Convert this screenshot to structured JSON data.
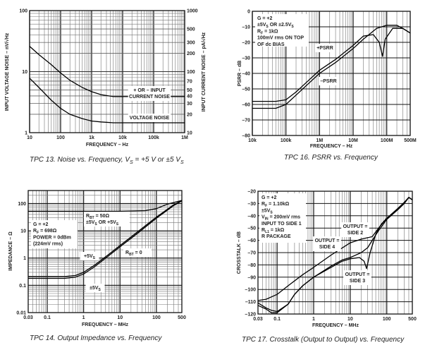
{
  "chart_data": [
    {
      "id": "tpc13",
      "type": "line",
      "caption": {
        "prefix": "TPC 13.  Noise vs. Frequency, V",
        "sub1": "S",
        "mid": " = +5 V or ±5 V",
        "sub2": "S"
      },
      "xlabel": "FREQUENCY – Hz",
      "ylabel": "INPUT VOLTAGE NOISE – nV/√Hz",
      "y2label": "INPUT CURRENT NOISE – pA/√Hz",
      "xscale": "log",
      "yscale": "log",
      "xlim": [
        10,
        1000000
      ],
      "ylim": [
        1,
        100
      ],
      "y2lim": [
        10,
        1000
      ],
      "xticks": [
        {
          "v": 10,
          "label": "10"
        },
        {
          "v": 100,
          "label": "100"
        },
        {
          "v": 1000,
          "label": "1k"
        },
        {
          "v": 10000,
          "label": "10k"
        },
        {
          "v": 100000,
          "label": "100k"
        },
        {
          "v": 1000000,
          "label": "1M"
        }
      ],
      "yticks": [
        {
          "v": 1,
          "label": "1"
        },
        {
          "v": 10,
          "label": "10"
        },
        {
          "v": 100,
          "label": "100"
        }
      ],
      "y2ticks": [
        {
          "v": 10,
          "label": "10"
        },
        {
          "v": 20,
          "label": "20"
        },
        {
          "v": 30,
          "label": "30"
        },
        {
          "v": 40,
          "label": "40"
        },
        {
          "v": 50,
          "label": "50"
        },
        {
          "v": 70,
          "label": "70"
        },
        {
          "v": 100,
          "label": "100"
        },
        {
          "v": 200,
          "label": "200"
        },
        {
          "v": 300,
          "label": "300"
        },
        {
          "v": 500,
          "label": "500"
        },
        {
          "v": 1000,
          "label": "1000"
        }
      ],
      "grid": true,
      "series": [
        {
          "name": "+ OR – INPUT CURRENT NOISE",
          "axis": "y2",
          "x": [
            10,
            20,
            50,
            100,
            200,
            500,
            1000,
            2000,
            5000,
            10000,
            100000,
            1000000
          ],
          "y": [
            260,
            190,
            130,
            95,
            72,
            55,
            47,
            42,
            39,
            39,
            39,
            39
          ]
        },
        {
          "name": "VOLTAGE NOISE",
          "axis": "y",
          "x": [
            10,
            20,
            50,
            100,
            200,
            500,
            1000,
            2000,
            5000,
            10000,
            100000,
            1000000
          ],
          "y": [
            7.8,
            5.5,
            3.4,
            2.5,
            2.0,
            1.7,
            1.55,
            1.5,
            1.45,
            1.45,
            1.45,
            1.45
          ]
        }
      ],
      "annotations": [
        {
          "lines": [
            "+ OR – INPUT",
            "CURRENT NOISE"
          ],
          "at": [
            20000,
            4.8
          ]
        },
        {
          "lines": [
            "VOLTAGE NOISE"
          ],
          "at": [
            20000,
            1.9
          ]
        }
      ]
    },
    {
      "id": "tpc16",
      "type": "line",
      "caption": {
        "text": "TPC 16.  PSRR vs. Frequency"
      },
      "xlabel": "FREQUENCY – Hz",
      "ylabel": "PSRR – dB",
      "xscale": "log",
      "yscale": "linear",
      "xlim": [
        10000,
        500000000
      ],
      "ylim": [
        -80,
        0
      ],
      "xticks": [
        {
          "v": 10000,
          "label": "10k"
        },
        {
          "v": 100000,
          "label": "100k"
        },
        {
          "v": 1000000,
          "label": "1M"
        },
        {
          "v": 10000000,
          "label": "10M"
        },
        {
          "v": 100000000,
          "label": "100M"
        },
        {
          "v": 500000000,
          "label": "500M"
        }
      ],
      "yticks": [
        {
          "v": 0,
          "label": "0"
        },
        {
          "v": -10,
          "label": "–10"
        },
        {
          "v": -20,
          "label": "–20"
        },
        {
          "v": -30,
          "label": "–30"
        },
        {
          "v": -40,
          "label": "–40"
        },
        {
          "v": -50,
          "label": "–50"
        },
        {
          "v": -60,
          "label": "–60"
        },
        {
          "v": -70,
          "label": "–70"
        },
        {
          "v": -80,
          "label": "–80"
        }
      ],
      "grid": true,
      "legend_box": [
        "G = +2",
        "±5V_S OR ±2.5V_S",
        "R_F = 1kΩ",
        "100mV rms ON TOP",
        "OF dc BIAS"
      ],
      "series": [
        {
          "name": "+PSRR",
          "x": [
            10000,
            50000,
            100000,
            200000,
            500000,
            1000000,
            3000000,
            10000000,
            20000000,
            40000000,
            60000000,
            75000000,
            90000000,
            150000000,
            300000000,
            500000000
          ],
          "y": [
            -58,
            -58,
            -57,
            -52,
            -44,
            -38,
            -31,
            -22,
            -16,
            -15,
            -20,
            -29,
            -18,
            -11,
            -11,
            -14
          ]
        },
        {
          "name": "–PSRR",
          "x": [
            10000,
            50000,
            100000,
            200000,
            500000,
            1000000,
            3000000,
            10000000,
            20000000,
            50000000,
            100000000,
            200000000,
            300000000,
            500000000
          ],
          "y": [
            -62.5,
            -62.5,
            -60,
            -54,
            -46,
            -40,
            -33,
            -24,
            -18,
            -11,
            -9,
            -9,
            -11,
            -14
          ]
        }
      ],
      "annotations": [
        {
          "lines": [
            "+PSRR"
          ],
          "at": [
            1500000,
            -23
          ]
        },
        {
          "lines": [
            "–PSRR"
          ],
          "at": [
            1500000,
            -45
          ]
        }
      ]
    },
    {
      "id": "tpc14",
      "type": "line",
      "caption": {
        "text": "TPC 14.  Output Impedance vs. Frequency"
      },
      "xlabel": "FREQUENCY – MHz",
      "ylabel": "IMPEDANCE – Ω",
      "xscale": "log",
      "yscale": "log",
      "xlim": [
        0.03,
        500
      ],
      "ylim": [
        0.01,
        300
      ],
      "xticks": [
        {
          "v": 0.03,
          "label": "0.03"
        },
        {
          "v": 0.1,
          "label": "0.1"
        },
        {
          "v": 1,
          "label": "1"
        },
        {
          "v": 10,
          "label": "10"
        },
        {
          "v": 100,
          "label": "100"
        },
        {
          "v": 500,
          "label": "500"
        }
      ],
      "yticks": [
        {
          "v": 0.01,
          "label": "0.01"
        },
        {
          "v": 0.1,
          "label": "0.1"
        },
        {
          "v": 1,
          "label": "1"
        },
        {
          "v": 10,
          "label": "10"
        },
        {
          "v": 100,
          "label": "100"
        }
      ],
      "grid": true,
      "legend_box": [
        "G = +2",
        "R_F = 698Ω",
        "POWER = 0dBm",
        "(224mV rms)"
      ],
      "series": [
        {
          "name": "R_BT = 50Ω",
          "x": [
            0.03,
            1,
            10,
            50,
            100,
            200,
            500
          ],
          "y": [
            52,
            52,
            52,
            55,
            65,
            95,
            130
          ]
        },
        {
          "name": "+5V_S",
          "x": [
            0.03,
            0.3,
            0.6,
            1,
            2,
            5,
            10,
            30,
            100,
            300,
            500
          ],
          "y": [
            0.21,
            0.21,
            0.23,
            0.3,
            0.55,
            1.4,
            2.9,
            9,
            32,
            90,
            130
          ]
        },
        {
          "name": "±5V_S",
          "x": [
            0.03,
            0.3,
            0.6,
            1,
            2,
            5,
            10,
            30,
            100,
            300,
            500
          ],
          "y": [
            0.18,
            0.18,
            0.2,
            0.26,
            0.48,
            1.25,
            2.6,
            8,
            29,
            85,
            125
          ]
        }
      ],
      "annotations": [
        {
          "lines": [
            "R_BT = 50Ω",
            "±5V_S OR +5V_S"
          ],
          "at": [
            1.2,
            60
          ]
        },
        {
          "lines": [
            "R_BT = 0"
          ],
          "at": [
            25,
            1.3
          ]
        },
        {
          "lines": [
            "+5V_S"
          ],
          "at": [
            1.0,
            0.9
          ]
        },
        {
          "lines": [
            "±5V_S"
          ],
          "at": [
            1.1,
            0.1
          ]
        }
      ]
    },
    {
      "id": "tpc17",
      "type": "line",
      "caption": {
        "text": "TPC 17.  Crosstalk (Output to Output) vs. Frequency"
      },
      "xlabel": "FREQUENCY – MHz",
      "ylabel": "CROSSTALK – dB",
      "xscale": "log",
      "yscale": "linear",
      "xlim": [
        0.03,
        500
      ],
      "ylim": [
        -120,
        -20
      ],
      "xticks": [
        {
          "v": 0.03,
          "label": "0.03"
        },
        {
          "v": 0.1,
          "label": "0.1"
        },
        {
          "v": 1,
          "label": "1"
        },
        {
          "v": 10,
          "label": "10"
        },
        {
          "v": 100,
          "label": "100"
        },
        {
          "v": 500,
          "label": "500"
        }
      ],
      "yticks": [
        {
          "v": -20,
          "label": "–20"
        },
        {
          "v": -30,
          "label": "–30"
        },
        {
          "v": -40,
          "label": "–40"
        },
        {
          "v": -50,
          "label": "–50"
        },
        {
          "v": -60,
          "label": "–60"
        },
        {
          "v": -70,
          "label": "–70"
        },
        {
          "v": -80,
          "label": "–80"
        },
        {
          "v": -90,
          "label": "–90"
        },
        {
          "v": -100,
          "label": "–100"
        },
        {
          "v": -110,
          "label": "–110"
        },
        {
          "v": -120,
          "label": "–120"
        }
      ],
      "grid": true,
      "legend_box": [
        "G = +2",
        "R_F = 1.10kΩ",
        "±5V_S",
        "V_IN = 200mV rms",
        "INPUT TO SIDE 1",
        "R_L1 = 1kΩ",
        "R PACKAGE"
      ],
      "series": [
        {
          "name": "OUTPUT = SIDE 4",
          "x": [
            0.03,
            0.05,
            0.1,
            0.2,
            0.5,
            1,
            3,
            10,
            20,
            40,
            60,
            100,
            200,
            300,
            400,
            500
          ],
          "y": [
            -109,
            -108,
            -104,
            -97,
            -88,
            -82,
            -72,
            -62,
            -59,
            -57,
            -50,
            -42,
            -34,
            -29,
            -25,
            -27
          ]
        },
        {
          "name": "OUTPUT = SIDE 2",
          "x": [
            0.03,
            0.05,
            0.07,
            0.1,
            0.2,
            0.3,
            0.5,
            1,
            3,
            6,
            10,
            20,
            30,
            40,
            60,
            100,
            200,
            300,
            400,
            500
          ],
          "y": [
            -111,
            -115,
            -117,
            -118,
            -112,
            -104,
            -97,
            -90,
            -81,
            -76,
            -74,
            -70,
            -66,
            -60,
            -52,
            -43,
            -35,
            -30,
            -25,
            -27
          ]
        },
        {
          "name": "OUTPUT = SIDE 3",
          "x": [
            0.03,
            0.05,
            0.07,
            0.1,
            0.2,
            0.3,
            0.5,
            1,
            3,
            6,
            10,
            18,
            24,
            28,
            35,
            50,
            70,
            100,
            200,
            300,
            400,
            500
          ],
          "y": [
            -113,
            -116,
            -119,
            -119,
            -112,
            -104,
            -97,
            -90,
            -82,
            -77,
            -75,
            -74,
            -77,
            -83,
            -70,
            -55,
            -47,
            -42,
            -35,
            -30,
            -25,
            -27
          ]
        }
      ],
      "annotations": [
        {
          "lines": [
            "OUTPUT =",
            "SIDE 2"
          ],
          "at": [
            15,
            -50
          ]
        },
        {
          "lines": [
            "OUTPUT =",
            "SIDE 4"
          ],
          "at": [
            2,
            -60
          ]
        },
        {
          "lines": [
            "OUTPUT =",
            "SIDE 3"
          ],
          "at": [
            20,
            -88
          ]
        }
      ]
    }
  ]
}
